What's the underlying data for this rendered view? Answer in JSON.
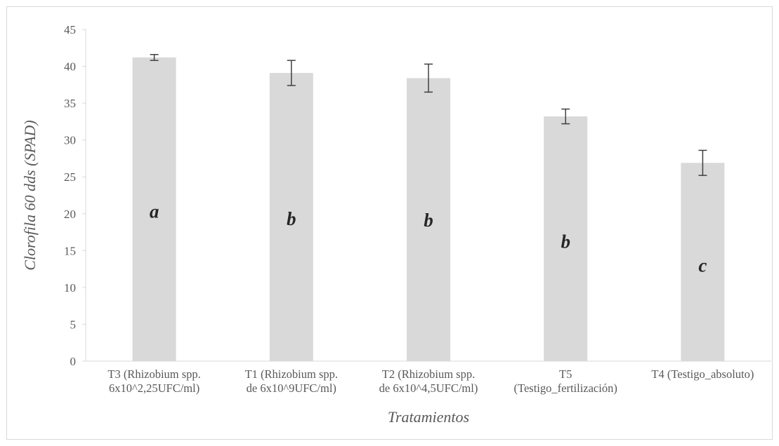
{
  "chart_data": {
    "type": "bar",
    "title": "",
    "xlabel": "Tratamientos",
    "ylabel": "Clorofila 60 dds (SPAD)",
    "ylim": [
      0,
      45
    ],
    "yticks": [
      0,
      5,
      10,
      15,
      20,
      25,
      30,
      35,
      40,
      45
    ],
    "grid": false,
    "legend": "none",
    "bar_color": "#d9d9d9",
    "categories": [
      [
        "T3 (Rhizobium spp.",
        "6x10^2,25UFC/ml)"
      ],
      [
        "T1 (Rhizobium spp.",
        "de 6x10^9UFC/ml)"
      ],
      [
        "T2 (Rhizobium spp.",
        "de 6x10^4,5UFC/ml)"
      ],
      [
        "T5",
        "(Testigo_fertilización)"
      ],
      [
        "T4 (Testigo_absoluto)"
      ]
    ],
    "values": [
      41.2,
      39.1,
      38.4,
      33.2,
      26.9
    ],
    "error": [
      0.4,
      1.7,
      1.9,
      1.0,
      1.7
    ],
    "letters": [
      "a",
      "b",
      "b",
      "b",
      "c"
    ],
    "letter_y": [
      20.3,
      19.3,
      19.1,
      16.2,
      13.0
    ]
  }
}
